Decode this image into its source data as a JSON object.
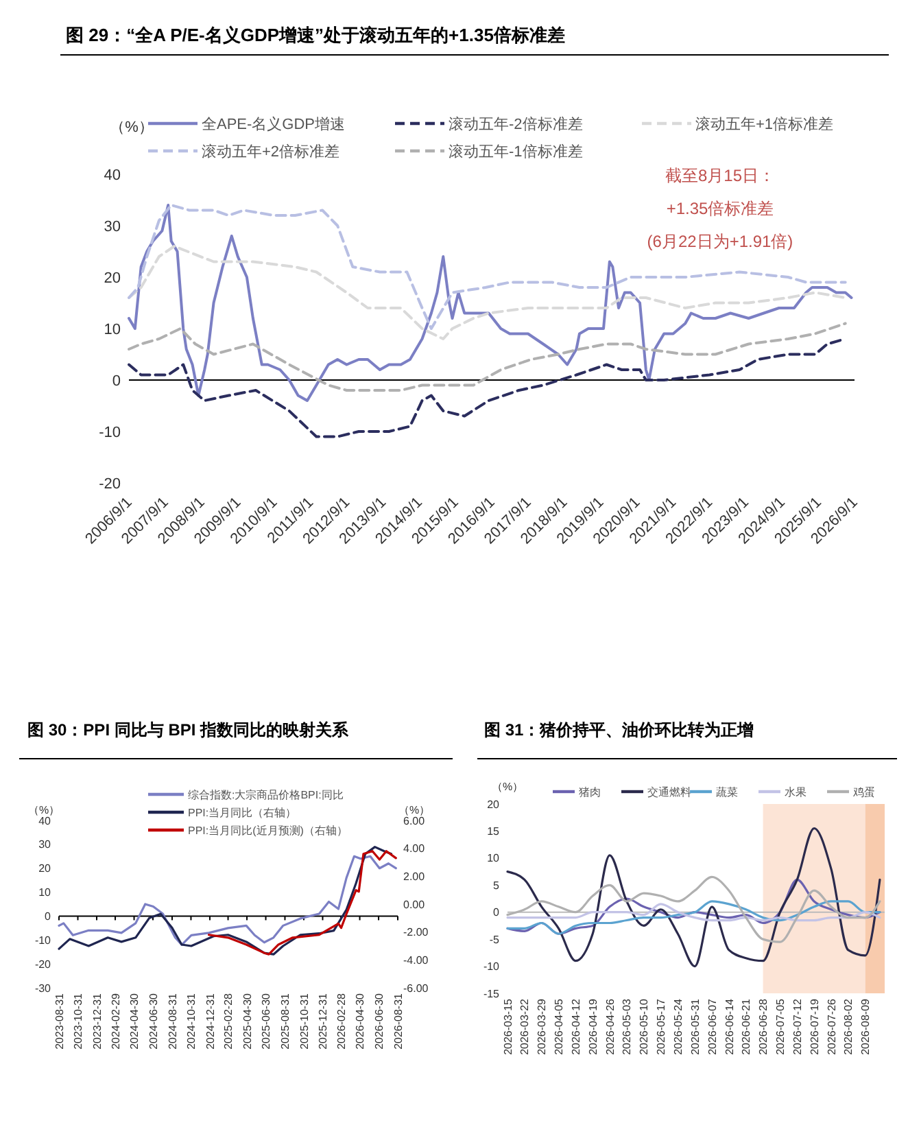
{
  "chart_data": [
    {
      "type": "line",
      "title": "图 29：“全A P/E-名义GDP增速”处于滚动五年的+1.35倍标准差",
      "ylabel": "（%）",
      "legend": "top",
      "xlim": [
        "2006-09-01",
        "2026-09-01"
      ],
      "ylim": [
        -20,
        40
      ],
      "yticks": [
        -20,
        -10,
        0,
        10,
        20,
        30,
        40
      ],
      "xticks": [
        {
          "value": "2006-09-01",
          "label": "2006/9/1"
        },
        {
          "value": "2007-09-01",
          "label": "2007/9/1"
        },
        {
          "value": "2008-09-01",
          "label": "2008/9/1"
        },
        {
          "value": "2009-09-01",
          "label": "2009/9/1"
        },
        {
          "value": "2010-09-01",
          "label": "2010/9/1"
        },
        {
          "value": "2011-09-01",
          "label": "2011/9/1"
        },
        {
          "value": "2012-09-01",
          "label": "2012/9/1"
        },
        {
          "value": "2013-09-01",
          "label": "2013/9/1"
        },
        {
          "value": "2014-09-01",
          "label": "2014/9/1"
        },
        {
          "value": "2015-09-01",
          "label": "2015/9/1"
        },
        {
          "value": "2016-09-01",
          "label": "2016/9/1"
        },
        {
          "value": "2017-09-01",
          "label": "2017/9/1"
        },
        {
          "value": "2018-09-01",
          "label": "2018/9/1"
        },
        {
          "value": "2019-09-01",
          "label": "2019/9/1"
        },
        {
          "value": "2020-09-01",
          "label": "2020/9/1"
        },
        {
          "value": "2021-09-01",
          "label": "2021/9/1"
        },
        {
          "value": "2022-09-01",
          "label": "2022/9/1"
        },
        {
          "value": "2023-09-01",
          "label": "2023/9/1"
        },
        {
          "value": "2024-09-01",
          "label": "2024/9/1"
        },
        {
          "value": "2025-09-01",
          "label": "2025/9/1"
        },
        {
          "value": "2026-09-01",
          "label": "2026/9/1"
        }
      ],
      "annotations": [
        "截至8月15日：",
        "+1.35倍标准差",
        "(6月22日为+1.91倍)"
      ],
      "series": [
        {
          "name": "全APE-名义GDP增速",
          "color": "#7b7fc4",
          "line_style": "solid",
          "x": [
            "2006-09",
            "2006-11",
            "2007-01",
            "2007-03",
            "2007-05",
            "2007-08",
            "2007-10",
            "2007-11",
            "2008-01",
            "2008-03",
            "2008-04",
            "2008-06",
            "2008-08",
            "2008-10",
            "2008-11",
            "2009-01",
            "2009-04",
            "2009-07",
            "2009-09",
            "2009-12",
            "2010-02",
            "2010-05",
            "2010-07",
            "2010-11",
            "2011-02",
            "2011-05",
            "2011-08",
            "2011-11",
            "2012-03",
            "2012-06",
            "2012-09",
            "2013-01",
            "2013-04",
            "2013-08",
            "2013-11",
            "2014-03",
            "2014-06",
            "2014-10",
            "2015-01",
            "2015-03",
            "2015-05",
            "2015-07",
            "2015-08",
            "2015-10",
            "2015-12",
            "2016-03",
            "2016-08",
            "2016-12",
            "2017-03",
            "2017-09",
            "2018-02",
            "2018-07",
            "2018-10",
            "2019-01",
            "2019-02",
            "2019-05",
            "2019-10",
            "2019-12",
            "2020-01",
            "2020-03",
            "2020-05",
            "2020-07",
            "2020-10",
            "2020-12",
            "2021-01",
            "2021-03",
            "2021-06",
            "2021-09",
            "2022-01",
            "2022-03",
            "2022-07",
            "2022-11",
            "2023-04",
            "2023-10",
            "2024-03",
            "2024-08",
            "2025-01",
            "2025-05",
            "2025-07",
            "2025-12",
            "2026-03",
            "2026-06",
            "2026-08"
          ],
          "values": [
            12,
            10,
            22,
            25,
            27,
            29,
            34,
            27,
            25,
            10,
            6,
            3,
            -3,
            2,
            5,
            15,
            22,
            28,
            24,
            20,
            12,
            3,
            3,
            2,
            0,
            -3,
            -4,
            -1,
            3,
            4,
            3,
            4,
            4,
            2,
            3,
            3,
            4,
            8,
            13,
            17,
            24,
            15,
            12,
            17,
            13,
            13,
            13,
            10,
            9,
            9,
            7,
            5,
            3,
            6,
            9,
            10,
            10,
            23,
            22,
            14,
            17,
            17,
            15,
            2,
            0,
            6,
            9,
            9,
            11,
            13,
            12,
            12,
            13,
            12,
            13,
            14,
            14,
            17,
            18,
            18,
            17,
            17,
            16
          ]
        },
        {
          "name": "滚动五年-2倍标准差",
          "color": "#2b2d5e",
          "line_style": "dashed",
          "x": [
            "2006-09",
            "2007-01",
            "2007-05",
            "2007-10",
            "2008-03",
            "2008-06",
            "2008-10",
            "2009-06",
            "2010-03",
            "2011-02",
            "2011-11",
            "2012-06",
            "2013-01",
            "2013-11",
            "2014-06",
            "2014-10",
            "2015-01",
            "2015-05",
            "2015-12",
            "2016-08",
            "2017-06",
            "2018-02",
            "2019-01",
            "2019-11",
            "2020-04",
            "2020-10",
            "2020-12",
            "2021-06",
            "2022-09",
            "2023-07",
            "2024-01",
            "2024-11",
            "2025-08",
            "2025-12",
            "2026-06"
          ],
          "values": [
            3,
            1,
            1,
            1,
            3,
            -2,
            -4,
            -3,
            -2,
            -6,
            -11,
            -11,
            -10,
            -10,
            -9,
            -4,
            -3,
            -6,
            -7,
            -4,
            -2,
            -1,
            1,
            3,
            2,
            2,
            0,
            0,
            1,
            2,
            4,
            5,
            5,
            7,
            8
          ]
        },
        {
          "name": "滚动五年+1倍标准差",
          "color": "#d9d9d9",
          "line_style": "dashed",
          "x": [
            "2006-09",
            "2007-01",
            "2007-07",
            "2007-12",
            "2009-01",
            "2010-02",
            "2011-04",
            "2011-11",
            "2012-09",
            "2013-04",
            "2014-03",
            "2014-10",
            "2015-05",
            "2015-08",
            "2016-03",
            "2016-08",
            "2017-09",
            "2019-02",
            "2019-11",
            "2020-04",
            "2020-12",
            "2022-01",
            "2022-11",
            "2023-10",
            "2024-11",
            "2025-08",
            "2026-06"
          ],
          "values": [
            16,
            18,
            24,
            26,
            23,
            23,
            22,
            21,
            17,
            14,
            14,
            10,
            8,
            10,
            12,
            13,
            14,
            14,
            14,
            16,
            16,
            14,
            15,
            15,
            16,
            17,
            16
          ]
        },
        {
          "name": "滚动五年+2倍标准差",
          "color": "#b8bfe3",
          "line_style": "dashed",
          "x": [
            "2006-09",
            "2006-12",
            "2007-03",
            "2007-07",
            "2007-11",
            "2008-05",
            "2009-01",
            "2009-06",
            "2009-11",
            "2010-09",
            "2011-04",
            "2012-01",
            "2012-06",
            "2012-11",
            "2013-08",
            "2014-05",
            "2014-10",
            "2015-01",
            "2015-08",
            "2016-07",
            "2017-03",
            "2018-05",
            "2019-02",
            "2019-11",
            "2020-07",
            "2022-01",
            "2023-07",
            "2024-11",
            "2025-05",
            "2026-06"
          ],
          "values": [
            16,
            18,
            24,
            31,
            34,
            33,
            33,
            32,
            33,
            32,
            32,
            33,
            30,
            22,
            21,
            21,
            14,
            10,
            17,
            18,
            19,
            19,
            18,
            18,
            20,
            20,
            21,
            20,
            19,
            19
          ]
        },
        {
          "name": "滚动五年-1倍标准差",
          "color": "#b0b0b0",
          "line_style": "dashed",
          "x": [
            "2006-09",
            "2007-01",
            "2007-07",
            "2008-02",
            "2008-07",
            "2009-01",
            "2010-02",
            "2011-02",
            "2012-03",
            "2012-09",
            "2013-04",
            "2014-03",
            "2014-10",
            "2015-08",
            "2016-03",
            "2016-12",
            "2017-10",
            "2018-07",
            "2019-02",
            "2019-11",
            "2020-07",
            "2020-12",
            "2022-01",
            "2022-11",
            "2023-10",
            "2024-11",
            "2025-08",
            "2026-06"
          ],
          "values": [
            6,
            7,
            8,
            10,
            7,
            5,
            7,
            3,
            -1,
            -2,
            -2,
            -2,
            -1,
            -1,
            -1,
            2,
            4,
            5,
            6,
            7,
            7,
            6,
            5,
            5,
            7,
            8,
            9,
            11
          ]
        }
      ]
    },
    {
      "type": "line",
      "title": "图 30：PPI 同比与 BPI 指数同比的映射关系",
      "ylabel": "（%）",
      "y2label": "（%）",
      "legend": "top",
      "xlim": [
        "2023-08-31",
        "2026-08-31"
      ],
      "ylim": [
        -30,
        40
      ],
      "yticks": [
        -30,
        -20,
        -10,
        0,
        10,
        20,
        30,
        40
      ],
      "y2lim": [
        -6,
        6
      ],
      "y2ticks": [
        {
          "value": -6,
          "label": "-6.00"
        },
        {
          "value": -4,
          "label": "-4.00"
        },
        {
          "value": -2,
          "label": "-2.00"
        },
        {
          "value": 0,
          "label": "0.00"
        },
        {
          "value": 2,
          "label": "2.00"
        },
        {
          "value": 4,
          "label": "4.00"
        },
        {
          "value": 6,
          "label": "6.00"
        }
      ],
      "xticks": [
        {
          "value": "2023-08-31",
          "label": "2023-08-31"
        },
        {
          "value": "2023-10-31",
          "label": "2023-10-31"
        },
        {
          "value": "2023-12-31",
          "label": "2023-12-31"
        },
        {
          "value": "2024-02-29",
          "label": "2024-02-29"
        },
        {
          "value": "2024-04-30",
          "label": "2024-04-30"
        },
        {
          "value": "2024-06-30",
          "label": "2024-06-30"
        },
        {
          "value": "2024-08-31",
          "label": "2024-08-31"
        },
        {
          "value": "2024-10-31",
          "label": "2024-10-31"
        },
        {
          "value": "2024-12-31",
          "label": "2024-12-31"
        },
        {
          "value": "2025-02-28",
          "label": "2025-02-28"
        },
        {
          "value": "2025-04-30",
          "label": "2025-04-30"
        },
        {
          "value": "2025-06-30",
          "label": "2025-06-30"
        },
        {
          "value": "2025-08-31",
          "label": "2025-08-31"
        },
        {
          "value": "2025-10-31",
          "label": "2025-10-31"
        },
        {
          "value": "2025-12-31",
          "label": "2025-12-31"
        },
        {
          "value": "2026-02-28",
          "label": "2026-02-28"
        },
        {
          "value": "2026-04-30",
          "label": "2026-04-30"
        },
        {
          "value": "2026-06-30",
          "label": "2026-06-30"
        },
        {
          "value": "2026-08-31",
          "label": "2026-08-31"
        }
      ],
      "series": [
        {
          "name": "综合指数:大宗商品价格BPI:同比",
          "color": "#7b7fc4",
          "x": [
            "2023-08-31",
            "2023-09-15",
            "2023-10-15",
            "2023-12-05",
            "2024-02-05",
            "2024-03-20",
            "2024-05-05",
            "2024-06-05",
            "2024-07-01",
            "2024-08-01",
            "2024-09-10",
            "2024-10-01",
            "2024-11-01",
            "2024-12-28",
            "2025-02-28",
            "2025-04-28",
            "2025-05-25",
            "2025-06-25",
            "2025-07-25",
            "2025-08-25",
            "2025-10-20",
            "2025-12-20",
            "2026-01-20",
            "2026-02-20",
            "2026-03-18",
            "2026-04-12",
            "2026-05-03",
            "2026-06-03",
            "2026-07-03",
            "2026-08-01",
            "2026-08-25"
          ],
          "values": [
            -4,
            -3,
            -8,
            -6,
            -6,
            -7,
            -3,
            5,
            4,
            1,
            -9,
            -12,
            -8,
            -7,
            -5,
            -4,
            -8,
            -11,
            -9,
            -4,
            -1,
            1,
            6,
            3,
            16,
            25,
            24,
            25,
            20,
            22,
            20
          ]
        },
        {
          "name": "PPI:当月同比（右轴）",
          "color": "#1f2550",
          "axis": "y2",
          "x": [
            "2023-08-31",
            "2023-10-05",
            "2023-12-05",
            "2024-02-05",
            "2024-03-20",
            "2024-05-05",
            "2024-06-18",
            "2024-07-25",
            "2024-08-31",
            "2024-10-01",
            "2024-11-01",
            "2025-01-12",
            "2025-02-28",
            "2025-04-28",
            "2025-06-25",
            "2025-07-25",
            "2025-08-25",
            "2025-10-20",
            "2025-12-20",
            "2026-02-05",
            "2026-03-18",
            "2026-04-18",
            "2026-05-18",
            "2026-06-18",
            "2026-07-18",
            "2026-08-10"
          ],
          "values": [
            -3.2,
            -2.5,
            -3.0,
            -2.4,
            -2.7,
            -2.4,
            -1.0,
            -0.7,
            -1.7,
            -2.9,
            -3.0,
            -2.3,
            -2.2,
            -2.7,
            -3.5,
            -3.6,
            -3.0,
            -2.2,
            -2.1,
            -1.9,
            -0.4,
            1.5,
            3.6,
            4.1,
            3.8,
            3.6
          ]
        },
        {
          "name": "PPI:当月同比(近月预测)（右轴）",
          "color": "#c00000",
          "axis": "y2",
          "x": [
            "2024-12-28",
            "2025-02-28",
            "2025-04-28",
            "2025-06-25",
            "2025-07-10",
            "2025-08-10",
            "2025-09-25",
            "2025-12-20",
            "2026-02-20",
            "2026-03-01",
            "2026-03-18",
            "2026-04-18",
            "2026-04-27",
            "2026-05-12",
            "2026-06-10",
            "2026-07-03",
            "2026-07-25",
            "2026-08-25"
          ],
          "values": [
            -2.2,
            -2.4,
            -2.9,
            -3.5,
            -3.6,
            -2.9,
            -2.4,
            -2.2,
            -1.4,
            -1.7,
            -0.7,
            1.0,
            0.9,
            3.6,
            3.8,
            3.2,
            3.8,
            3.3
          ]
        }
      ]
    },
    {
      "type": "line",
      "title": "图 31：猪价持平、油价环比转为正增",
      "ylabel": "（%）",
      "legend": "top",
      "xlim": [
        "2026-03-15",
        "2026-08-17"
      ],
      "ylim": [
        -15,
        20
      ],
      "yticks": [
        -15,
        -10,
        -5,
        0,
        5,
        10,
        15,
        20
      ],
      "xticks": [
        {
          "value": "2026-03-15",
          "label": "2026-03-15"
        },
        {
          "value": "2026-03-22",
          "label": "2026-03-22"
        },
        {
          "value": "2026-03-29",
          "label": "2026-03-29"
        },
        {
          "value": "2026-04-05",
          "label": "2026-04-05"
        },
        {
          "value": "2026-04-12",
          "label": "2026-04-12"
        },
        {
          "value": "2026-04-19",
          "label": "2026-04-19"
        },
        {
          "value": "2026-04-26",
          "label": "2026-04-26"
        },
        {
          "value": "2026-05-03",
          "label": "2026-05-03"
        },
        {
          "value": "2026-05-10",
          "label": "2026-05-10"
        },
        {
          "value": "2026-05-17",
          "label": "2026-05-17"
        },
        {
          "value": "2026-05-24",
          "label": "2026-05-24"
        },
        {
          "value": "2026-05-31",
          "label": "2026-05-31"
        },
        {
          "value": "2026-06-07",
          "label": "2026-06-07"
        },
        {
          "value": "2026-06-14",
          "label": "2026-06-14"
        },
        {
          "value": "2026-06-21",
          "label": "2026-06-21"
        },
        {
          "value": "2026-06-28",
          "label": "2026-06-28"
        },
        {
          "value": "2026-07-05",
          "label": "2026-07-05"
        },
        {
          "value": "2026-07-12",
          "label": "2026-07-12"
        },
        {
          "value": "2026-07-19",
          "label": "2026-07-19"
        },
        {
          "value": "2026-07-26",
          "label": "2026-07-26"
        },
        {
          "value": "2026-08-02",
          "label": "2026-08-02"
        },
        {
          "value": "2026-08-09",
          "label": "2026-08-09"
        }
      ],
      "x": [
        "2026-03-15",
        "2026-03-22",
        "2026-03-29",
        "2026-04-05",
        "2026-04-12",
        "2026-04-19",
        "2026-04-26",
        "2026-05-03",
        "2026-05-10",
        "2026-05-17",
        "2026-05-24",
        "2026-05-31",
        "2026-06-07",
        "2026-06-14",
        "2026-06-21",
        "2026-06-28",
        "2026-07-05",
        "2026-07-12",
        "2026-07-19",
        "2026-07-26",
        "2026-08-02",
        "2026-08-09",
        "2026-08-15"
      ],
      "bands": [
        {
          "axis": "x",
          "from": "2026-06-28",
          "to": "2026-08-09",
          "color": "#fce4d6"
        },
        {
          "axis": "x",
          "from": "2026-08-09",
          "to": "2026-08-17",
          "color": "#f8cbad"
        }
      ],
      "series": [
        {
          "name": "猪肉",
          "color": "#6b62b0",
          "values": [
            -3,
            -3.5,
            -2,
            -4,
            -3,
            -2.5,
            1,
            2.5,
            1,
            0,
            -1,
            0,
            -0.5,
            -1,
            -0.5,
            -2,
            0,
            6,
            2,
            0.5,
            -0.5,
            -1,
            0
          ]
        },
        {
          "name": "交通燃料",
          "color": "#2b2a4c",
          "values": [
            7.5,
            6,
            1,
            -3,
            -9,
            -4,
            10.5,
            2,
            -2.5,
            0.5,
            -4,
            -10,
            1,
            -7,
            -8.5,
            -9,
            0,
            6,
            15.5,
            8,
            -7,
            -8,
            6
          ]
        },
        {
          "name": "蔬菜",
          "color": "#5ba3d0",
          "values": [
            -3,
            -3,
            -2,
            -4,
            -2.5,
            -2,
            -2,
            -1.5,
            -1,
            -1,
            -0.5,
            0,
            2,
            1.5,
            0.5,
            -1,
            -1.5,
            -0.5,
            1,
            2,
            2,
            0,
            0
          ]
        },
        {
          "name": "水果",
          "color": "#c3c3e6",
          "values": [
            -1,
            -1,
            -1,
            -1,
            -1,
            0,
            0,
            0,
            -0.5,
            1.5,
            0,
            -1,
            -1.5,
            -1.5,
            -1,
            -1.5,
            -1,
            -1.5,
            -1.5,
            -1,
            -1,
            0,
            -1
          ]
        },
        {
          "name": "鸡蛋",
          "color": "#b0b0b0",
          "values": [
            -0.5,
            0.5,
            2,
            1,
            0,
            3,
            5,
            2,
            3.5,
            3,
            2,
            4,
            6.5,
            4,
            -1,
            -5,
            -5.5,
            -1,
            4,
            1,
            -1,
            -1,
            2
          ]
        }
      ]
    }
  ]
}
